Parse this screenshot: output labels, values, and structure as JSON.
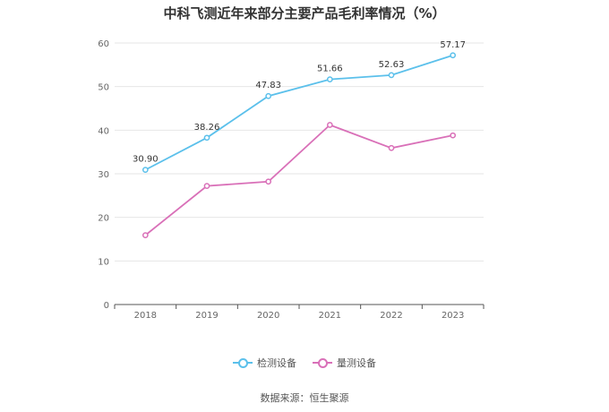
{
  "chart_data": {
    "type": "line",
    "title": "中科飞测近年来部分主要产品毛利率情况（%）",
    "categories": [
      "2018",
      "2019",
      "2020",
      "2021",
      "2022",
      "2023"
    ],
    "ylim": [
      0,
      60
    ],
    "yticks": [
      0,
      10,
      20,
      30,
      40,
      50,
      60
    ],
    "grid": true,
    "legend_position": "bottom",
    "series": [
      {
        "name": "检测设备",
        "color": "#5bc0eb",
        "values": [
          30.9,
          38.26,
          47.83,
          51.66,
          52.63,
          57.17
        ],
        "labels": [
          "30.90",
          "38.26",
          "47.83",
          "51.66",
          "52.63",
          "57.17"
        ]
      },
      {
        "name": "量测设备",
        "color": "#d970b8",
        "values": [
          15.9,
          27.2,
          28.2,
          41.2,
          35.9,
          38.8
        ]
      }
    ]
  },
  "source": "数据来源：恒生聚源"
}
